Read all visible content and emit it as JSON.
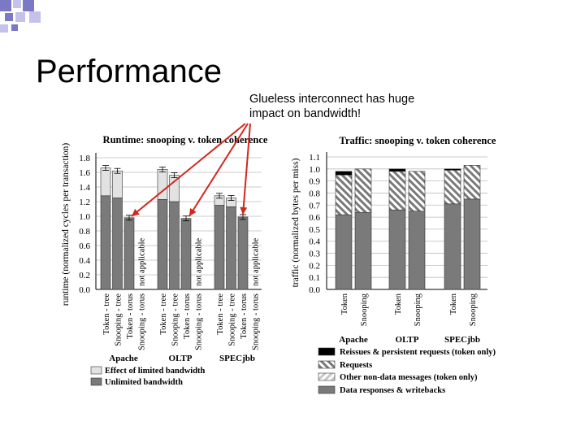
{
  "slide": {
    "title": "Performance",
    "callout": "Glueless interconnect has huge impact on bandwidth!"
  },
  "colors": {
    "square_dark": "#7b78c4",
    "square_light": "#c4c2ea",
    "arrow": "#d0281e",
    "bar_dark": "#7a7a7a",
    "bar_light": "#e2e2e2",
    "bar_black": "#000000"
  },
  "chart_data": [
    {
      "type": "bar",
      "stacked": true,
      "title": "Runtime: snooping v. token coherence",
      "ylabel": "runtime (normalized cycles per transaction)",
      "ylim": [
        0,
        1.8
      ],
      "yticks": [
        "0.0",
        "0.2",
        "0.4",
        "0.6",
        "0.8",
        "1.0",
        "1.2",
        "1.4",
        "1.6",
        "1.8"
      ],
      "grid": true,
      "groups": [
        "Apache",
        "OLTP",
        "SPECjbb"
      ],
      "categories": [
        "Token - tree",
        "Snooping - tree",
        "Token - torus",
        "Snooping - torus"
      ],
      "not_applicable_label": "not applicable",
      "series": [
        {
          "name": "Unlimited bandwidth",
          "values": [
            [
              1.28,
              1.25,
              0.98,
              null
            ],
            [
              1.23,
              1.2,
              0.97,
              null
            ],
            [
              1.15,
              1.13,
              0.99,
              null
            ]
          ]
        },
        {
          "name": "Effect of limited bandwidth",
          "values": [
            [
              0.38,
              0.37,
              0.0,
              null
            ],
            [
              0.41,
              0.36,
              0.0,
              null
            ],
            [
              0.13,
              0.12,
              0.0,
              null
            ]
          ]
        }
      ],
      "legend_position": "bottom"
    },
    {
      "type": "bar",
      "stacked": true,
      "title": "Traffic: snooping v. token coherence",
      "ylabel": "traffic (normalized bytes per miss)",
      "ylim": [
        0,
        1.1
      ],
      "yticks": [
        "0.0",
        "0.1",
        "0.2",
        "0.3",
        "0.4",
        "0.5",
        "0.6",
        "0.7",
        "0.8",
        "0.9",
        "1.0",
        "1.1"
      ],
      "grid": true,
      "groups": [
        "Apache",
        "OLTP",
        "SPECjbb"
      ],
      "categories": [
        "Token",
        "Snooping"
      ],
      "series": [
        {
          "name": "Data responses & writebacks",
          "values": [
            [
              0.62,
              0.64
            ],
            [
              0.66,
              0.65
            ],
            [
              0.71,
              0.75
            ]
          ]
        },
        {
          "name": "Other non-data messages (token only)",
          "values": [
            [
              0.0,
              0.0
            ],
            [
              0.0,
              0.0
            ],
            [
              0.0,
              0.0
            ]
          ]
        },
        {
          "name": "Requests",
          "values": [
            [
              0.33,
              0.36
            ],
            [
              0.32,
              0.33
            ],
            [
              0.28,
              0.28
            ]
          ]
        },
        {
          "name": "Reissues & persistent requests (token only)",
          "values": [
            [
              0.03,
              0.0
            ],
            [
              0.02,
              0.0
            ],
            [
              0.01,
              0.0
            ]
          ]
        }
      ],
      "legend_position": "bottom"
    }
  ]
}
